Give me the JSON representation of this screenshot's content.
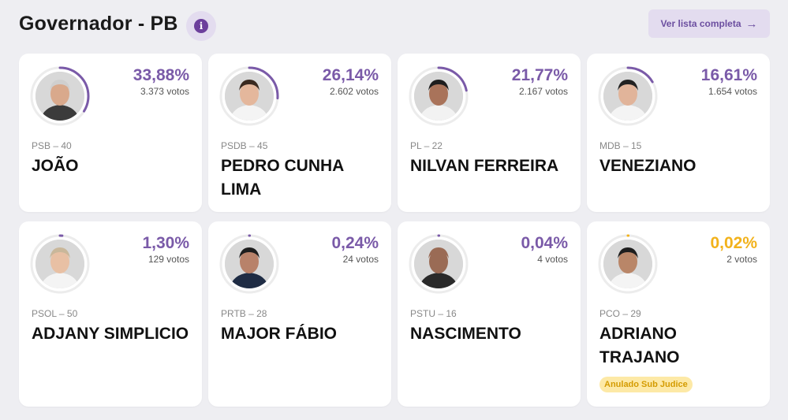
{
  "header": {
    "title": "Governador - PB",
    "info_icon": "info-icon",
    "full_list_label": "Ver lista completa",
    "arrow_icon": "arrow-right-icon"
  },
  "colors": {
    "accent": "#7a5aa8",
    "ring_track": "#ececec",
    "sub_judice": "#f2b21b",
    "badge_bg": "#fde9a6"
  },
  "candidates": [
    {
      "percent": "33,88%",
      "share": 0.3388,
      "votes": "3.373 votos",
      "party": "PSB – 40",
      "name": "JOÃO",
      "ring": "#7a5aa8",
      "skin": "#d9a98c",
      "shirt": "#3b3b3b",
      "hair": "#cfcfcf"
    },
    {
      "percent": "26,14%",
      "share": 0.2614,
      "votes": "2.602 votos",
      "party": "PSDB – 45",
      "name": "PEDRO CUNHA LIMA",
      "ring": "#7a5aa8",
      "skin": "#e4b79c",
      "shirt": "#f4f4f4",
      "hair": "#3a2a20"
    },
    {
      "percent": "21,77%",
      "share": 0.2177,
      "votes": "2.167 votos",
      "party": "PL – 22",
      "name": "NILVAN FERREIRA",
      "ring": "#7a5aa8",
      "skin": "#a9735a",
      "shirt": "#f2f2f2",
      "hair": "#1e1e1e"
    },
    {
      "percent": "16,61%",
      "share": 0.1661,
      "votes": "1.654 votos",
      "party": "MDB – 15",
      "name": "VENEZIANO",
      "ring": "#7a5aa8",
      "skin": "#e1b49a",
      "shirt": "#f4f4f4",
      "hair": "#222222"
    },
    {
      "percent": "1,30%",
      "share": 0.013,
      "votes": "129 votos",
      "party": "PSOL – 50",
      "name": "ADJANY SIMPLICIO",
      "ring": "#7a5aa8",
      "skin": "#e8c0a4",
      "shirt": "#f4f4f4",
      "hair": "#c9b79a"
    },
    {
      "percent": "0,24%",
      "share": 0.0024,
      "votes": "24 votos",
      "party": "PRTB – 28",
      "name": "MAJOR FÁBIO",
      "ring": "#7a5aa8",
      "skin": "#b8826a",
      "shirt": "#1f2c44",
      "hair": "#1e1e1e"
    },
    {
      "percent": "0,04%",
      "share": 0.0004,
      "votes": "4 votos",
      "party": "PSTU – 16",
      "name": "NASCIMENTO",
      "ring": "#7a5aa8",
      "skin": "#9a6b55",
      "shirt": "#2a2a2a",
      "hair": "#9a6b55"
    },
    {
      "percent": "0,02%",
      "share": 0.0002,
      "votes": "2 votos",
      "party": "PCO – 29",
      "name": "ADRIANO TRAJANO",
      "ring": "#f2b21b",
      "skin": "#b98668",
      "shirt": "#f4f4f4",
      "hair": "#1e1e1e",
      "badge": "Anulado Sub Judice"
    }
  ]
}
